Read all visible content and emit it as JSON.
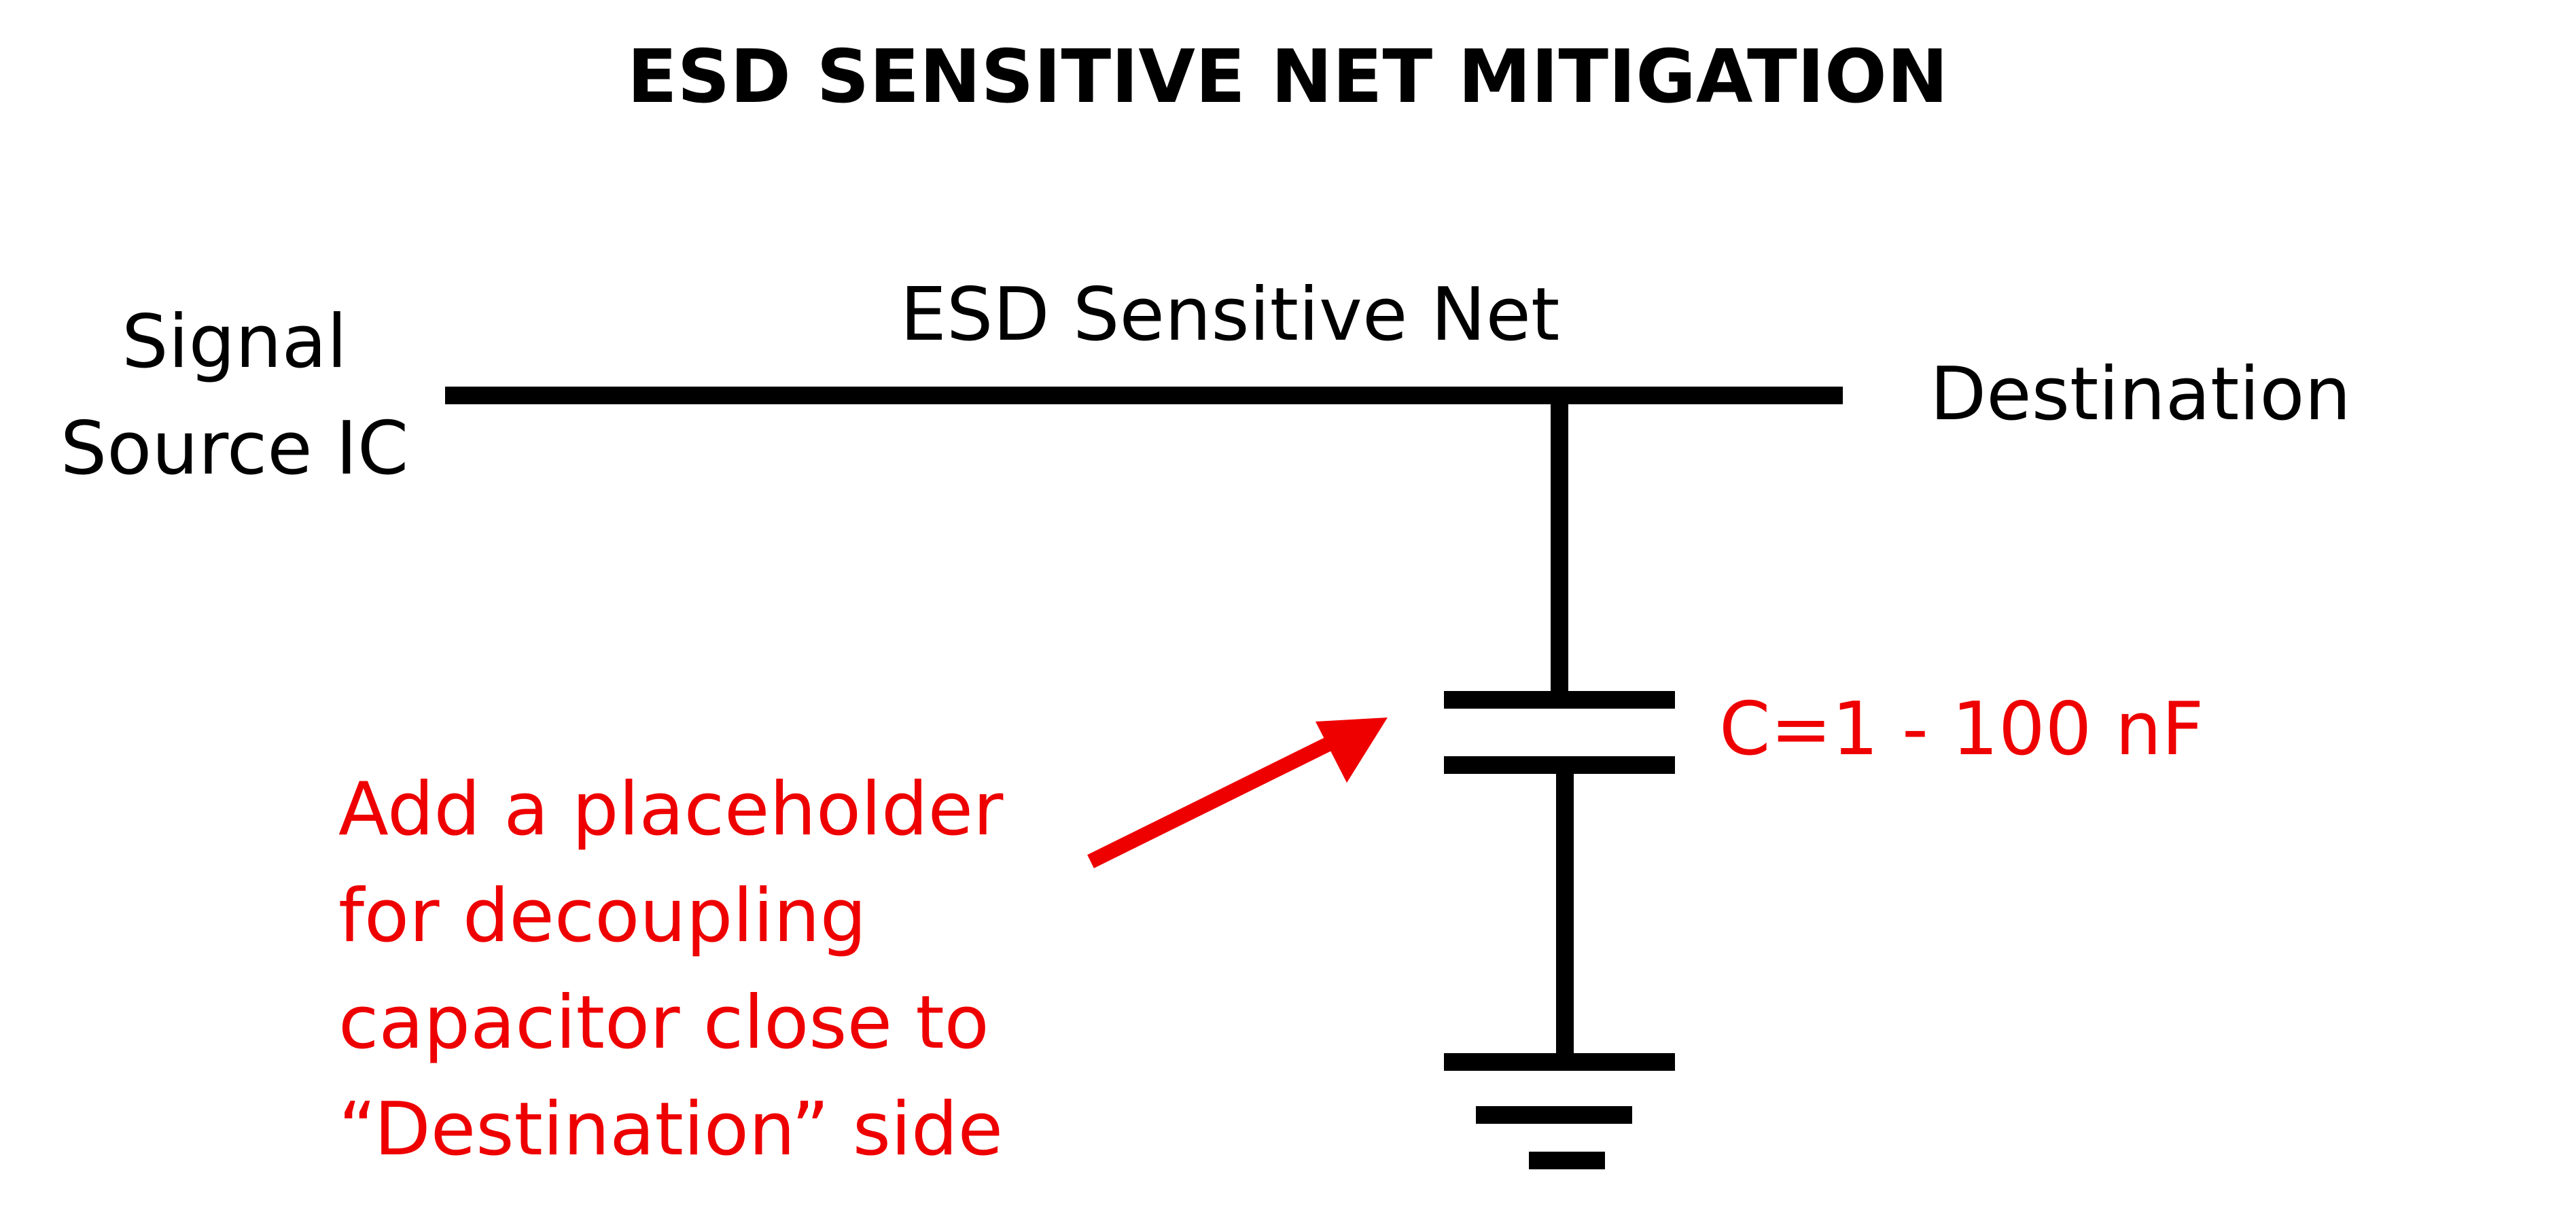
{
  "title": "ESD SENSITIVE NET MITIGATION",
  "labels": {
    "source_line1": "Signal",
    "source_line2": "Source IC",
    "net": "ESD Sensitive Net",
    "destination": "Destination",
    "capacitor_value": "C=1 - 100 nF"
  },
  "annotation": {
    "lines": [
      "Add a placeholder",
      "for decoupling",
      "capacitor close to",
      "“Destination” side"
    ]
  },
  "colors": {
    "wire": "#000000",
    "text": "#000000",
    "highlight": "#ee0000",
    "background": "#ffffff"
  }
}
